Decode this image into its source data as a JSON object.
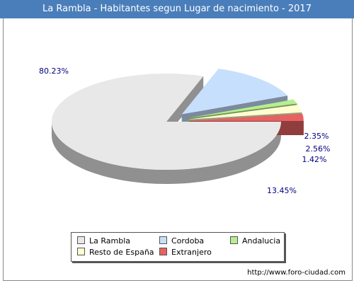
{
  "header": {
    "title": "La Rambla - Habitantes segun Lugar de nacimiento - 2017"
  },
  "footer": {
    "url": "http://www.foro-ciudad.com"
  },
  "chart_data": {
    "type": "pie",
    "title": "La Rambla - Habitantes segun Lugar de nacimiento - 2017",
    "legend_position": "bottom",
    "slices": [
      {
        "name": "La Rambla",
        "value": 80.23,
        "label": "80.23%",
        "color": "#e8e8e8"
      },
      {
        "name": "Cordoba",
        "value": 13.45,
        "label": "13.45%",
        "color": "#c6dffd"
      },
      {
        "name": "Andalucia",
        "value": 1.42,
        "label": "1.42%",
        "color": "#b7ee8f"
      },
      {
        "name": "Resto de España",
        "value": 2.56,
        "label": "2.56%",
        "color": "#fefed0"
      },
      {
        "name": "Extranjero",
        "value": 2.35,
        "label": "2.35%",
        "color": "#e86262"
      }
    ]
  }
}
